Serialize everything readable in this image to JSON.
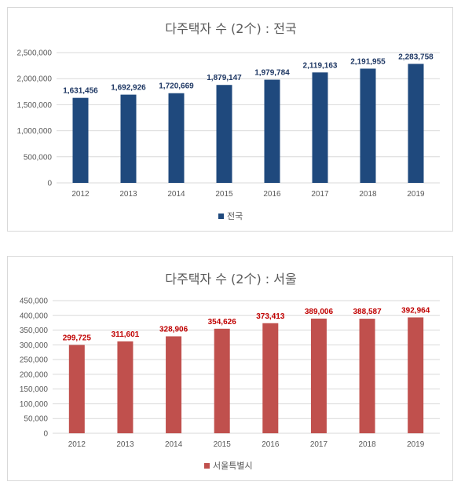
{
  "chart_data": [
    {
      "type": "bar",
      "title": "다주택자 수 (2个) : 전국",
      "categories": [
        "2012",
        "2013",
        "2014",
        "2015",
        "2016",
        "2017",
        "2018",
        "2019"
      ],
      "series": [
        {
          "name": "전국",
          "values": [
            1631456,
            1692926,
            1720669,
            1879147,
            1979784,
            2119163,
            2191955,
            2283758
          ],
          "labels": [
            "1,631,456",
            "1,692,926",
            "1,720,669",
            "1,879,147",
            "1,979,784",
            "2,119,163",
            "2,191,955",
            "2,283,758"
          ]
        }
      ],
      "ylim": [
        0,
        2500000
      ],
      "yticks": [
        "0",
        "500,000",
        "1,000,000",
        "1,500,000",
        "2,000,000",
        "2,500,000"
      ],
      "grid": true,
      "legend": "bottom",
      "color": "#1f497d"
    },
    {
      "type": "bar",
      "title": "다주택자 수 (2个) : 서울",
      "categories": [
        "2012",
        "2013",
        "2014",
        "2015",
        "2016",
        "2017",
        "2018",
        "2019"
      ],
      "series": [
        {
          "name": "서울특별시",
          "values": [
            299725,
            311601,
            328906,
            354626,
            373413,
            389006,
            388587,
            392964
          ],
          "labels": [
            "299,725",
            "311,601",
            "328,906",
            "354,626",
            "373,413",
            "389,006",
            "388,587",
            "392,964"
          ]
        }
      ],
      "ylim": [
        0,
        450000
      ],
      "yticks": [
        "0",
        "50,000",
        "100,000",
        "150,000",
        "200,000",
        "250,000",
        "300,000",
        "350,000",
        "400,000",
        "450,000"
      ],
      "grid": true,
      "legend": "bottom",
      "color": "#c0504d"
    }
  ]
}
